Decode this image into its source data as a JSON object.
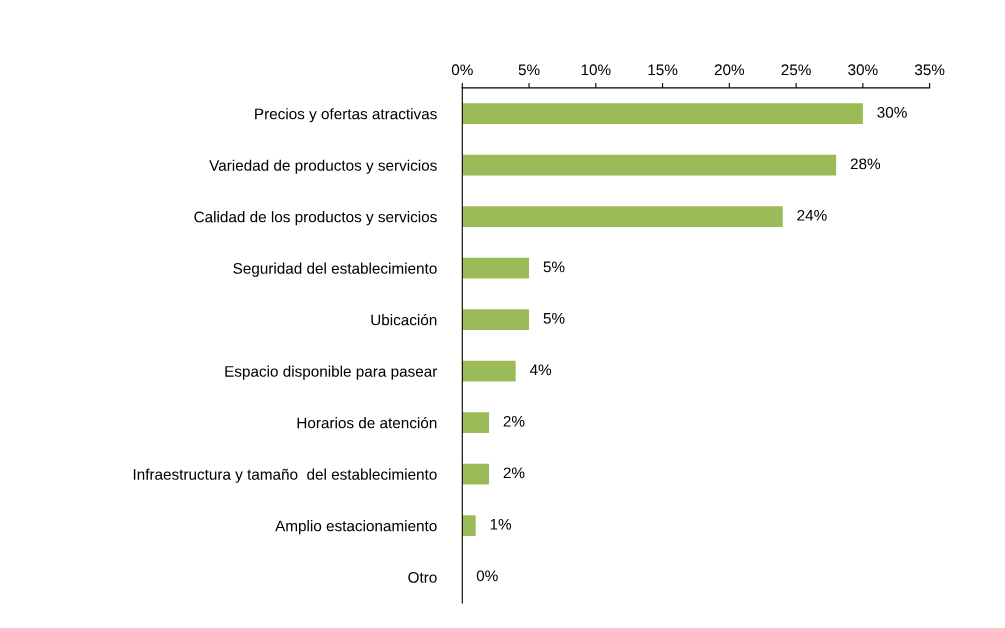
{
  "chart_data": {
    "type": "bar",
    "orientation": "horizontal",
    "categories": [
      "Precios y ofertas atractivas",
      "Variedad de productos y servicios",
      "Calidad de los productos y servicios",
      "Seguridad del establecimiento",
      "Ubicación",
      "Espacio disponible para pasear",
      "Horarios de atención",
      "Infraestructura y tamaño  del establecimiento",
      "Amplio estacionamiento",
      "Otro"
    ],
    "values": [
      30,
      28,
      24,
      5,
      5,
      4,
      2,
      2,
      1,
      0
    ],
    "value_labels": [
      "30%",
      "28%",
      "24%",
      "5%",
      "5%",
      "4%",
      "2%",
      "2%",
      "1%",
      "0%"
    ],
    "color": "#9bbb59",
    "xlim": [
      0,
      35
    ],
    "xticks": [
      {
        "value": 0,
        "label": "0%"
      },
      {
        "value": 5,
        "label": "5%"
      },
      {
        "value": 10,
        "label": "10%"
      },
      {
        "value": 15,
        "label": "15%"
      },
      {
        "value": 20,
        "label": "20%"
      },
      {
        "value": 25,
        "label": "25%"
      },
      {
        "value": 30,
        "label": "30%"
      },
      {
        "value": 35,
        "label": "35%"
      }
    ],
    "grid": false,
    "legend": false
  }
}
